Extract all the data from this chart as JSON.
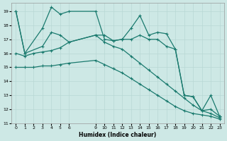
{
  "xlabel": "Humidex (Indice chaleur)",
  "bg_color": "#cde8e5",
  "line_color": "#1a7a6e",
  "grid_color": "#b8d8d4",
  "xlim": [
    -0.5,
    23.5
  ],
  "ylim": [
    11,
    19.6
  ],
  "yticks": [
    11,
    12,
    13,
    14,
    15,
    16,
    17,
    18,
    19
  ],
  "xticks": [
    0,
    1,
    2,
    3,
    4,
    5,
    6,
    9,
    10,
    11,
    12,
    13,
    14,
    15,
    16,
    17,
    18,
    19,
    20,
    21,
    22,
    23
  ],
  "xtick_labels": [
    "0",
    "1",
    "2",
    "3",
    "4",
    "5",
    "6",
    "9",
    "10",
    "11",
    "12",
    "13",
    "14",
    "15",
    "16",
    "17",
    "18",
    "19",
    "20",
    "21",
    "22",
    "23"
  ],
  "line1": {
    "x": [
      0,
      1,
      3,
      4,
      5,
      6,
      9,
      10,
      11,
      12,
      13,
      14,
      15,
      16,
      17,
      18,
      19,
      20,
      21,
      22,
      23
    ],
    "y": [
      19,
      16,
      17.8,
      19.3,
      18.8,
      19.0,
      19.0,
      17.0,
      16.9,
      17.0,
      17.8,
      18.7,
      17.3,
      17.5,
      17.4,
      16.3,
      13.0,
      12.9,
      11.9,
      13.0,
      11.5
    ]
  },
  "line2": {
    "x": [
      0,
      1,
      3,
      4,
      5,
      6,
      9,
      10,
      11,
      12,
      13,
      14,
      15,
      16,
      17,
      18,
      19,
      20,
      21,
      22,
      23
    ],
    "y": [
      19,
      16.0,
      16.5,
      17.5,
      17.3,
      16.8,
      17.3,
      17.3,
      16.9,
      17.0,
      17.0,
      17.3,
      17.0,
      17.0,
      16.5,
      16.3,
      13.0,
      12.9,
      11.9,
      12.0,
      11.5
    ]
  },
  "line3": {
    "x": [
      0,
      1,
      2,
      3,
      4,
      5,
      6,
      9,
      10,
      11,
      12,
      13,
      14,
      15,
      16,
      17,
      18,
      19,
      20,
      21,
      22,
      23
    ],
    "y": [
      16.0,
      15.8,
      16.0,
      16.1,
      16.2,
      16.4,
      16.8,
      17.3,
      16.8,
      16.5,
      16.3,
      15.8,
      15.3,
      14.8,
      14.3,
      13.8,
      13.3,
      12.8,
      12.3,
      11.9,
      11.7,
      11.4
    ]
  },
  "line4": {
    "x": [
      0,
      1,
      2,
      3,
      4,
      5,
      6,
      9,
      10,
      11,
      12,
      13,
      14,
      15,
      16,
      17,
      18,
      19,
      20,
      21,
      22,
      23
    ],
    "y": [
      15.0,
      15.0,
      15.0,
      15.1,
      15.1,
      15.2,
      15.3,
      15.5,
      15.2,
      14.9,
      14.6,
      14.2,
      13.8,
      13.4,
      13.0,
      12.6,
      12.2,
      11.9,
      11.7,
      11.6,
      11.5,
      11.3
    ]
  }
}
